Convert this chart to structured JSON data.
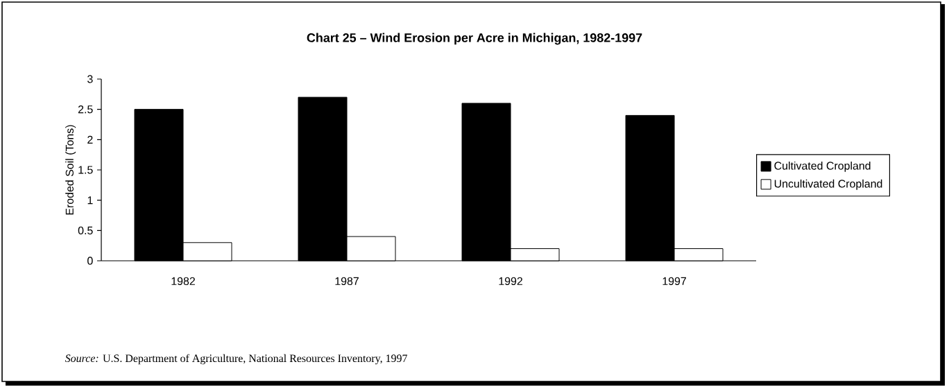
{
  "chart_data": {
    "type": "bar",
    "title": "Chart 25 – Wind Erosion per Acre in Michigan, 1982-1997",
    "ylabel": "Eroded Soil (Tons)",
    "categories": [
      "1982",
      "1987",
      "1992",
      "1997"
    ],
    "series": [
      {
        "name": "Cultivated Cropland",
        "color": "#000000",
        "values": [
          2.5,
          2.7,
          2.6,
          2.4
        ]
      },
      {
        "name": "Uncultivated Cropland",
        "color": "#ffffff",
        "values": [
          0.3,
          0.4,
          0.2,
          0.2
        ]
      }
    ],
    "ylim": [
      0,
      3
    ],
    "yticks": [
      0,
      0.5,
      1,
      1.5,
      2,
      2.5,
      3
    ],
    "legend": "right",
    "annotations": [
      "*Source:*  U.S. Department of Agriculture, National Resources Inventory, 1997"
    ]
  }
}
